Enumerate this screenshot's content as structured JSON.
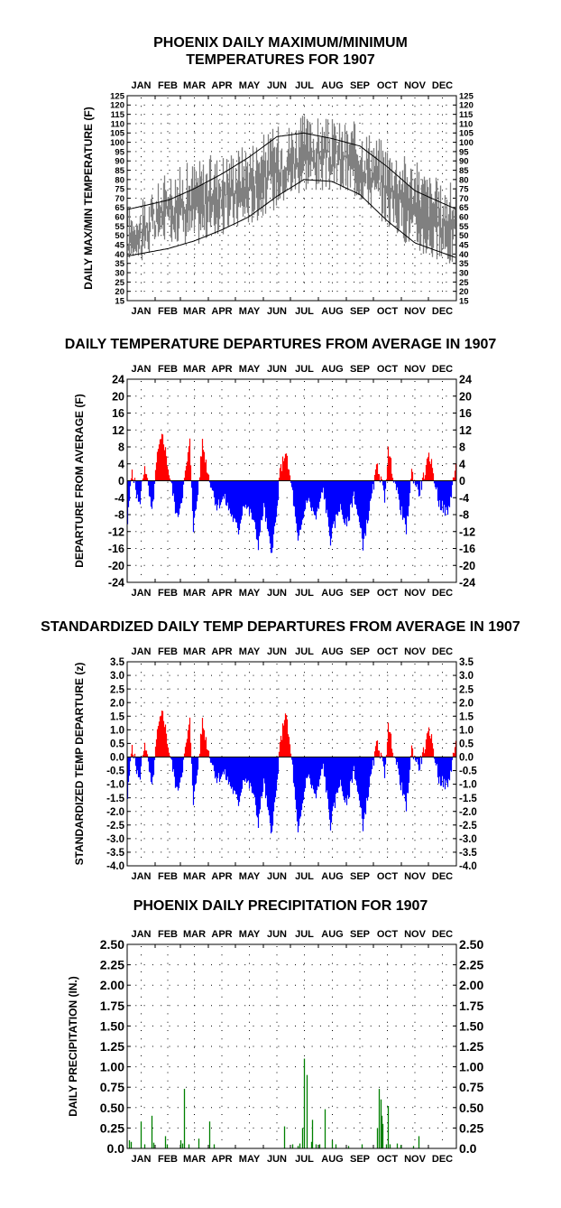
{
  "chart_data": [
    {
      "type": "area",
      "title": "PHOENIX DAILY MAXIMUM/MINIMUM TEMPERATURES FOR 1907",
      "ylabel": "DAILY MAX/MIN TEMPERATURE (F)",
      "xlabel": "",
      "months": [
        "JAN",
        "FEB",
        "MAR",
        "APR",
        "MAY",
        "JUN",
        "JUL",
        "AUG",
        "SEP",
        "OCT",
        "NOV",
        "DEC"
      ],
      "ylim": [
        15,
        125
      ],
      "yticks": [
        15,
        20,
        25,
        30,
        35,
        40,
        45,
        50,
        55,
        60,
        65,
        70,
        75,
        80,
        85,
        90,
        95,
        100,
        105,
        110,
        115,
        120,
        125
      ],
      "ytick_labels": [
        "15",
        "20",
        "25",
        "30",
        "35",
        "40",
        "45",
        "50",
        "55",
        "60",
        "65",
        "70",
        "75",
        "80",
        "85",
        "90",
        "95",
        "100",
        "105",
        "110",
        "115",
        "120",
        "125"
      ],
      "grid": true,
      "colors": {
        "range": "#808080",
        "normals": "#000000"
      },
      "series": [
        {
          "role": "max",
          "month_day": [
            15,
            46,
            74,
            105,
            135,
            166,
            196,
            227,
            258,
            288,
            319,
            349
          ],
          "values": [
            55,
            72,
            78,
            82,
            88,
            96,
            102,
            100,
            98,
            88,
            78,
            66
          ]
        },
        {
          "role": "min",
          "month_day": [
            15,
            46,
            74,
            105,
            135,
            166,
            196,
            227,
            258,
            288,
            319,
            349
          ],
          "values": [
            46,
            58,
            55,
            60,
            66,
            75,
            85,
            84,
            80,
            66,
            52,
            44
          ]
        },
        {
          "role": "normal_max",
          "month_day": [
            1,
            46,
            74,
            105,
            135,
            166,
            196,
            227,
            258,
            288,
            319,
            365
          ],
          "values": [
            64,
            69,
            75,
            83,
            92,
            103,
            105,
            102,
            98,
            87,
            74,
            64
          ]
        },
        {
          "role": "normal_min",
          "month_day": [
            1,
            46,
            74,
            105,
            135,
            166,
            196,
            227,
            258,
            288,
            319,
            365
          ],
          "values": [
            39,
            43,
            47,
            53,
            60,
            71,
            80,
            79,
            72,
            58,
            46,
            38
          ]
        }
      ]
    },
    {
      "type": "bar",
      "title": "DAILY TEMPERATURE DEPARTURES FROM AVERAGE IN 1907",
      "ylabel": "DEPARTURE FROM AVERAGE (F)",
      "xlabel": "",
      "months": [
        "JAN",
        "FEB",
        "MAR",
        "APR",
        "MAY",
        "JUN",
        "JUL",
        "AUG",
        "SEP",
        "OCT",
        "NOV",
        "DEC"
      ],
      "ylim": [
        -24,
        24
      ],
      "yticks": [
        -24,
        -20,
        -16,
        -12,
        -8,
        -4,
        0,
        4,
        8,
        12,
        16,
        20,
        24
      ],
      "ytick_labels": [
        "-24",
        "-20",
        "-16",
        "-12",
        "-8",
        "-4",
        "0",
        "4",
        "8",
        "12",
        "16",
        "20",
        "24"
      ],
      "grid": true,
      "colors": {
        "positive": "#ff0000",
        "negative": "#0000ff"
      },
      "daily_anchors_day": [
        1,
        6,
        10,
        14,
        20,
        28,
        34,
        40,
        46,
        52,
        56,
        62,
        70,
        74,
        78,
        84,
        90,
        100,
        108,
        116,
        124,
        130,
        140,
        146,
        152,
        160,
        166,
        170,
        176,
        184,
        190,
        200,
        210,
        218,
        226,
        236,
        244,
        252,
        262,
        270,
        278,
        286,
        290,
        300,
        310,
        316,
        324,
        336,
        346,
        356,
        365
      ],
      "daily_anchors_value": [
        -10,
        3,
        -2,
        -6,
        4,
        -8,
        6,
        11,
        3,
        -4,
        -9,
        -3,
        9,
        -11,
        -5,
        9,
        2,
        -6,
        -4,
        -8,
        -12,
        -5,
        -9,
        -15,
        -6,
        -17,
        -9,
        2,
        7,
        -3,
        -15,
        -4,
        -9,
        -2,
        -14,
        -6,
        -11,
        -3,
        -15,
        -6,
        4,
        -4,
        7,
        -3,
        -12,
        2,
        -3,
        6,
        -5,
        -8,
        4
      ]
    },
    {
      "type": "bar",
      "title": "STANDARDIZED DAILY TEMP DEPARTURES FROM AVERAGE IN 1907",
      "ylabel": "STANDARDIZED TEMP DEPARTURE (z)",
      "xlabel": "",
      "months": [
        "JAN",
        "FEB",
        "MAR",
        "APR",
        "MAY",
        "JUN",
        "JUL",
        "AUG",
        "SEP",
        "OCT",
        "NOV",
        "DEC"
      ],
      "ylim": [
        -4.0,
        3.5
      ],
      "yticks": [
        -4.0,
        -3.5,
        -3.0,
        -2.5,
        -2.0,
        -1.5,
        -1.0,
        -0.5,
        0.0,
        0.5,
        1.0,
        1.5,
        2.0,
        2.5,
        3.0,
        3.5
      ],
      "ytick_labels_left": [
        "-4.0",
        "-3.5",
        "-3.0",
        "-2.5",
        "-2.0",
        "-1.5",
        "-1.0",
        "-0.5",
        "0.0",
        "0.5",
        "1.0",
        "1.5",
        "2.0",
        "2.5",
        "3.0",
        "3.5"
      ],
      "ytick_labels_right": [
        "-4.0",
        "-3.5",
        "-3.0",
        "-2.5",
        "-2.0",
        "-1.5",
        "-1.0",
        "-0.5",
        "0.0",
        "0.5",
        "1.0",
        "1.5",
        "2.0",
        "2.5",
        "3.0",
        "3.5"
      ],
      "grid": true,
      "colors": {
        "positive": "#ff0000",
        "negative": "#0000ff"
      },
      "daily_anchors_day": [
        1,
        6,
        10,
        14,
        20,
        28,
        34,
        40,
        46,
        52,
        56,
        62,
        70,
        74,
        78,
        84,
        90,
        100,
        108,
        116,
        124,
        130,
        140,
        146,
        152,
        160,
        166,
        170,
        176,
        184,
        190,
        200,
        210,
        218,
        226,
        236,
        244,
        252,
        262,
        270,
        278,
        286,
        290,
        300,
        310,
        316,
        324,
        336,
        346,
        356,
        365
      ],
      "daily_anchors_value": [
        -1.5,
        0.5,
        -0.3,
        -0.9,
        0.6,
        -1.2,
        0.9,
        1.7,
        0.4,
        -0.6,
        -1.3,
        -0.4,
        1.3,
        -1.6,
        -0.7,
        1.3,
        0.3,
        -0.8,
        -0.6,
        -1.1,
        -1.7,
        -0.7,
        -1.3,
        -2.4,
        -0.9,
        -2.8,
        -1.3,
        0.4,
        1.7,
        -0.4,
        -2.9,
        -0.6,
        -1.5,
        -0.3,
        -2.5,
        -0.9,
        -1.8,
        -0.4,
        -2.5,
        -0.9,
        0.6,
        -0.6,
        1.1,
        -0.4,
        -1.9,
        0.3,
        -0.4,
        1.0,
        -0.8,
        -1.1,
        0.6
      ]
    },
    {
      "type": "bar",
      "title": "PHOENIX DAILY PRECIPITATION FOR 1907",
      "ylabel": "DAILY PRECIPITATION (IN.)",
      "xlabel": "",
      "months": [
        "JAN",
        "FEB",
        "MAR",
        "APR",
        "MAY",
        "JUN",
        "JUL",
        "AUG",
        "SEP",
        "OCT",
        "NOV",
        "DEC"
      ],
      "ylim": [
        0.0,
        2.5
      ],
      "yticks": [
        0.0,
        0.25,
        0.5,
        0.75,
        1.0,
        1.25,
        1.5,
        1.75,
        2.0,
        2.25,
        2.5
      ],
      "ytick_labels": [
        "0.0",
        "0.25",
        "0.50",
        "0.75",
        "1.00",
        "1.25",
        "1.50",
        "1.75",
        "2.00",
        "2.25",
        "2.50"
      ],
      "grid": true,
      "colors": {
        "bars": "#008000"
      },
      "days": [
        3,
        5,
        16,
        20,
        28,
        30,
        43,
        45,
        60,
        62,
        64,
        69,
        80,
        92,
        97,
        175,
        184,
        190,
        192,
        195,
        197,
        200,
        205,
        206,
        210,
        214,
        220,
        228,
        232,
        246,
        261,
        278,
        280,
        282,
        283,
        284,
        288,
        290,
        292,
        300,
        304,
        318,
        324
      ],
      "values": [
        0.1,
        0.08,
        0.33,
        0.05,
        0.4,
        0.07,
        0.15,
        0.05,
        0.1,
        0.06,
        0.73,
        0.05,
        0.12,
        0.33,
        0.05,
        0.27,
        0.05,
        0.03,
        0.06,
        0.25,
        1.1,
        0.9,
        0.08,
        0.35,
        0.05,
        0.05,
        0.48,
        0.1,
        0.05,
        0.03,
        0.05,
        0.25,
        0.73,
        0.6,
        0.4,
        0.3,
        0.05,
        0.52,
        0.05,
        0.06,
        0.04,
        0.03,
        0.15
      ]
    }
  ]
}
